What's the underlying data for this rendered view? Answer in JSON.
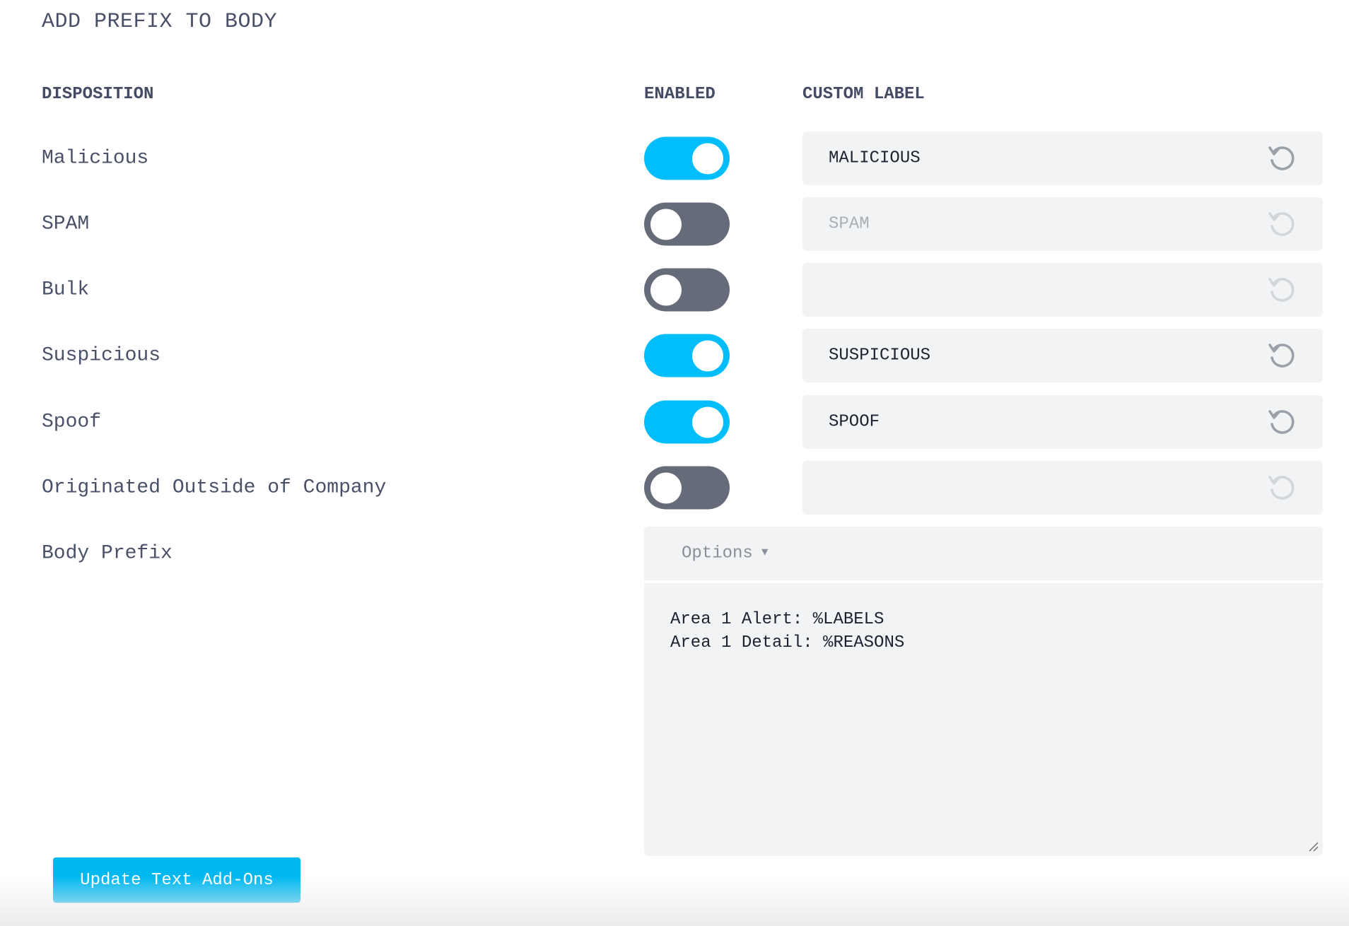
{
  "section_title": "ADD PREFIX TO BODY",
  "headers": {
    "disposition": "DISPOSITION",
    "enabled": "ENABLED",
    "custom_label": "CUSTOM LABEL"
  },
  "rows": [
    {
      "label": "Malicious",
      "enabled": true,
      "custom_label": "MALICIOUS"
    },
    {
      "label": "SPAM",
      "enabled": false,
      "custom_label": "SPAM"
    },
    {
      "label": "Bulk",
      "enabled": false,
      "custom_label": ""
    },
    {
      "label": "Suspicious",
      "enabled": true,
      "custom_label": "SUSPICIOUS"
    },
    {
      "label": "Spoof",
      "enabled": true,
      "custom_label": "SPOOF"
    },
    {
      "label": "Originated Outside of Company",
      "enabled": false,
      "custom_label": ""
    }
  ],
  "body_prefix": {
    "label": "Body Prefix",
    "options_label": "Options",
    "options_icon": "caret-down-icon",
    "lines": [
      "Area 1 Alert: %LABELS",
      "Area 1 Detail: %REASONS"
    ]
  },
  "update_button": "Update Text Add-Ons",
  "colors": {
    "toggle_on": "#00bdfb",
    "toggle_off": "#666b7a",
    "button": "#00b8f0",
    "field_bg": "#f1f3f5"
  }
}
